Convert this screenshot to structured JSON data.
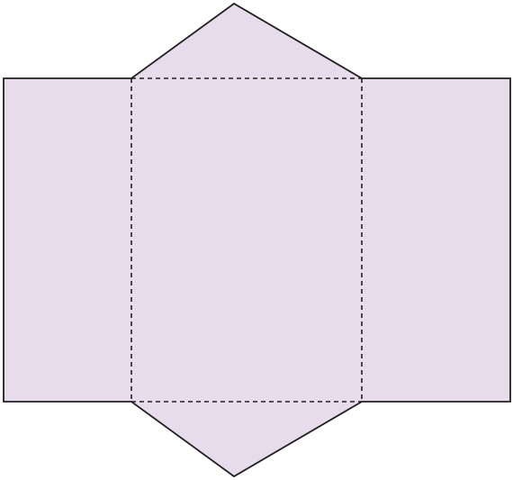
{
  "figure": {
    "kind": "net of a triangular prism",
    "faces": [
      {
        "role": "left-rectangle-face",
        "shape": "rectangle"
      },
      {
        "role": "center-rectangle-face",
        "shape": "rectangle"
      },
      {
        "role": "right-rectangle-face",
        "shape": "rectangle"
      },
      {
        "role": "top-triangle-face",
        "shape": "triangle"
      },
      {
        "role": "bottom-triangle-face",
        "shape": "triangle"
      }
    ],
    "fold_lines": "dashed",
    "outline": "solid"
  },
  "colors": {
    "fill": "#e6dcec",
    "outline": "#231f20",
    "fold_line": "#231f20",
    "background": "#ffffff"
  }
}
